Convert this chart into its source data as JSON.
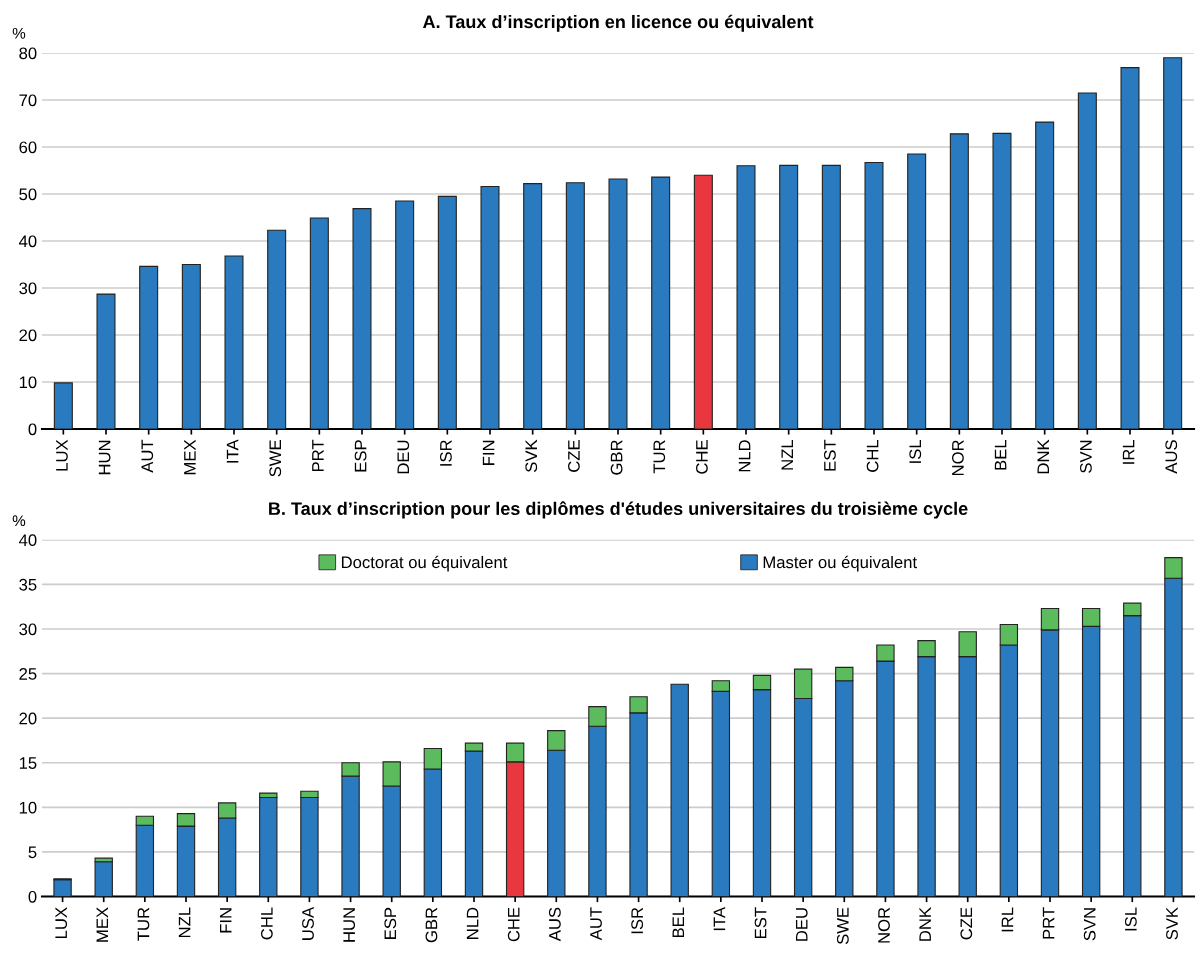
{
  "chart_data": [
    {
      "type": "bar",
      "title": "A. Taux d’inscription en licence ou équivalent",
      "ylabel": "%",
      "categories": [
        "LUX",
        "HUN",
        "AUT",
        "MEX",
        "ITA",
        "SWE",
        "PRT",
        "ESP",
        "DEU",
        "ISR",
        "FIN",
        "SVK",
        "CZE",
        "GBR",
        "TUR",
        "CHE",
        "NLD",
        "NZL",
        "EST",
        "CHL",
        "ISL",
        "NOR",
        "BEL",
        "DNK",
        "SVN",
        "IRL",
        "AUS"
      ],
      "series": [
        {
          "colors": [
            "#2a7abf",
            "#2a7abf",
            "#2a7abf",
            "#2a7abf",
            "#2a7abf",
            "#2a7abf",
            "#2a7abf",
            "#2a7abf",
            "#2a7abf",
            "#2a7abf",
            "#2a7abf",
            "#2a7abf",
            "#2a7abf",
            "#2a7abf",
            "#2a7abf",
            "#e8373f",
            "#2a7abf",
            "#2a7abf",
            "#2a7abf",
            "#2a7abf",
            "#2a7abf",
            "#2a7abf",
            "#2a7abf",
            "#2a7abf",
            "#2a7abf",
            "#2a7abf",
            "#2a7abf"
          ],
          "values": [
            9.8,
            28.7,
            34.6,
            35.0,
            36.8,
            42.3,
            44.9,
            46.9,
            48.5,
            49.5,
            51.6,
            52.2,
            52.4,
            53.2,
            53.6,
            54.0,
            56.0,
            56.1,
            56.1,
            56.7,
            58.5,
            62.8,
            62.9,
            65.3,
            71.5,
            76.9,
            79.0
          ]
        }
      ],
      "ylim": [
        0,
        80
      ],
      "yticks": [
        0,
        10,
        20,
        30,
        40,
        50,
        60,
        70,
        80
      ],
      "grid": "y",
      "legend": false
    },
    {
      "type": "bar",
      "title": "B. Taux d’inscription pour les diplômes d'études universitaires du troisième cycle",
      "ylabel": "%",
      "stacked": true,
      "categories": [
        "LUX",
        "MEX",
        "TUR",
        "NZL",
        "FIN",
        "CHL",
        "USA",
        "HUN",
        "ESP",
        "GBR",
        "NLD",
        "CHE",
        "AUS",
        "AUT",
        "ISR",
        "BEL",
        "ITA",
        "EST",
        "DEU",
        "SWE",
        "NOR",
        "DNK",
        "CZE",
        "IRL",
        "PRT",
        "SVN",
        "ISL",
        "SVK"
      ],
      "series": [
        {
          "name": "Master ou équivalent",
          "color": "#2a7abf",
          "colors": [
            "#2a7abf",
            "#2a7abf",
            "#2a7abf",
            "#2a7abf",
            "#2a7abf",
            "#2a7abf",
            "#2a7abf",
            "#2a7abf",
            "#2a7abf",
            "#2a7abf",
            "#2a7abf",
            "#e8373f",
            "#2a7abf",
            "#2a7abf",
            "#2a7abf",
            "#2a7abf",
            "#2a7abf",
            "#2a7abf",
            "#2a7abf",
            "#2a7abf",
            "#2a7abf",
            "#2a7abf",
            "#2a7abf",
            "#2a7abf",
            "#2a7abf",
            "#2a7abf",
            "#2a7abf",
            "#2a7abf"
          ],
          "values": [
            1.9,
            3.9,
            8.0,
            7.9,
            8.8,
            11.1,
            11.1,
            13.5,
            12.4,
            14.3,
            16.3,
            15.1,
            16.4,
            19.1,
            20.6,
            23.8,
            23.0,
            23.2,
            22.2,
            24.2,
            26.4,
            26.9,
            26.9,
            28.2,
            29.9,
            30.3,
            31.5,
            35.7
          ]
        },
        {
          "name": "Doctorat ou équivalent",
          "color": "#5cbb5c",
          "values": [
            0.1,
            0.4,
            1.0,
            1.4,
            1.7,
            0.5,
            0.7,
            1.5,
            2.7,
            2.3,
            0.9,
            2.1,
            2.2,
            2.2,
            1.8,
            null,
            1.2,
            1.6,
            3.3,
            1.5,
            1.8,
            1.8,
            2.8,
            2.3,
            2.4,
            2.0,
            1.4,
            2.3
          ]
        }
      ],
      "ylim": [
        0,
        40
      ],
      "yticks": [
        0,
        5,
        10,
        15,
        20,
        25,
        30,
        35,
        40
      ],
      "grid": "y",
      "legend": "top"
    }
  ]
}
